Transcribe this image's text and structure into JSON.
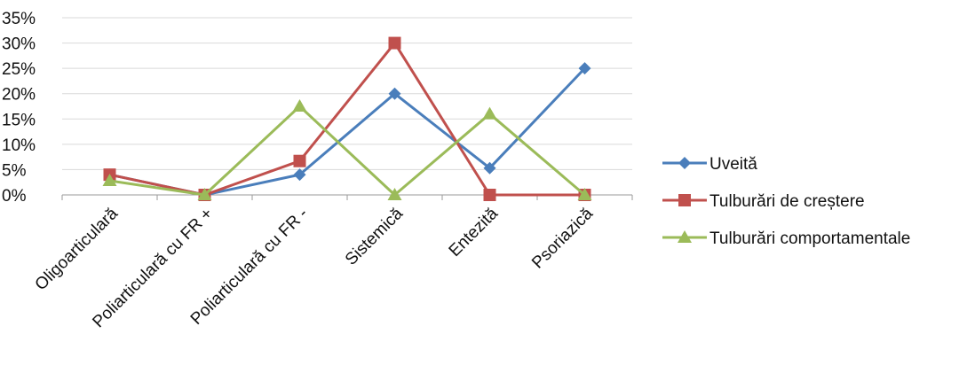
{
  "chart_data": {
    "type": "line",
    "categories": [
      "Oligoarticulară",
      "Poliarticulară cu FR +",
      "Poliarticulară cu FR -",
      "Sistemică",
      "Entezită",
      "Psoriazică"
    ],
    "series": [
      {
        "name": "Uveită",
        "values": [
          4,
          0,
          4,
          20,
          5.3,
          25
        ],
        "color": "#4a7ebb",
        "marker": "diamond"
      },
      {
        "name": "Tulburări de creștere",
        "values": [
          4,
          0,
          6.7,
          30,
          0,
          0
        ],
        "color": "#c0504d",
        "marker": "square"
      },
      {
        "name": "Tulburări comportamentale",
        "values": [
          2.8,
          0,
          17.5,
          0,
          16,
          0
        ],
        "color": "#9bbb59",
        "marker": "triangle"
      }
    ],
    "yticks": [
      "0%",
      "5%",
      "10%",
      "15%",
      "20%",
      "25%",
      "30%",
      "35%"
    ],
    "ylim": [
      0,
      35
    ],
    "grid": true,
    "legend": "right"
  }
}
